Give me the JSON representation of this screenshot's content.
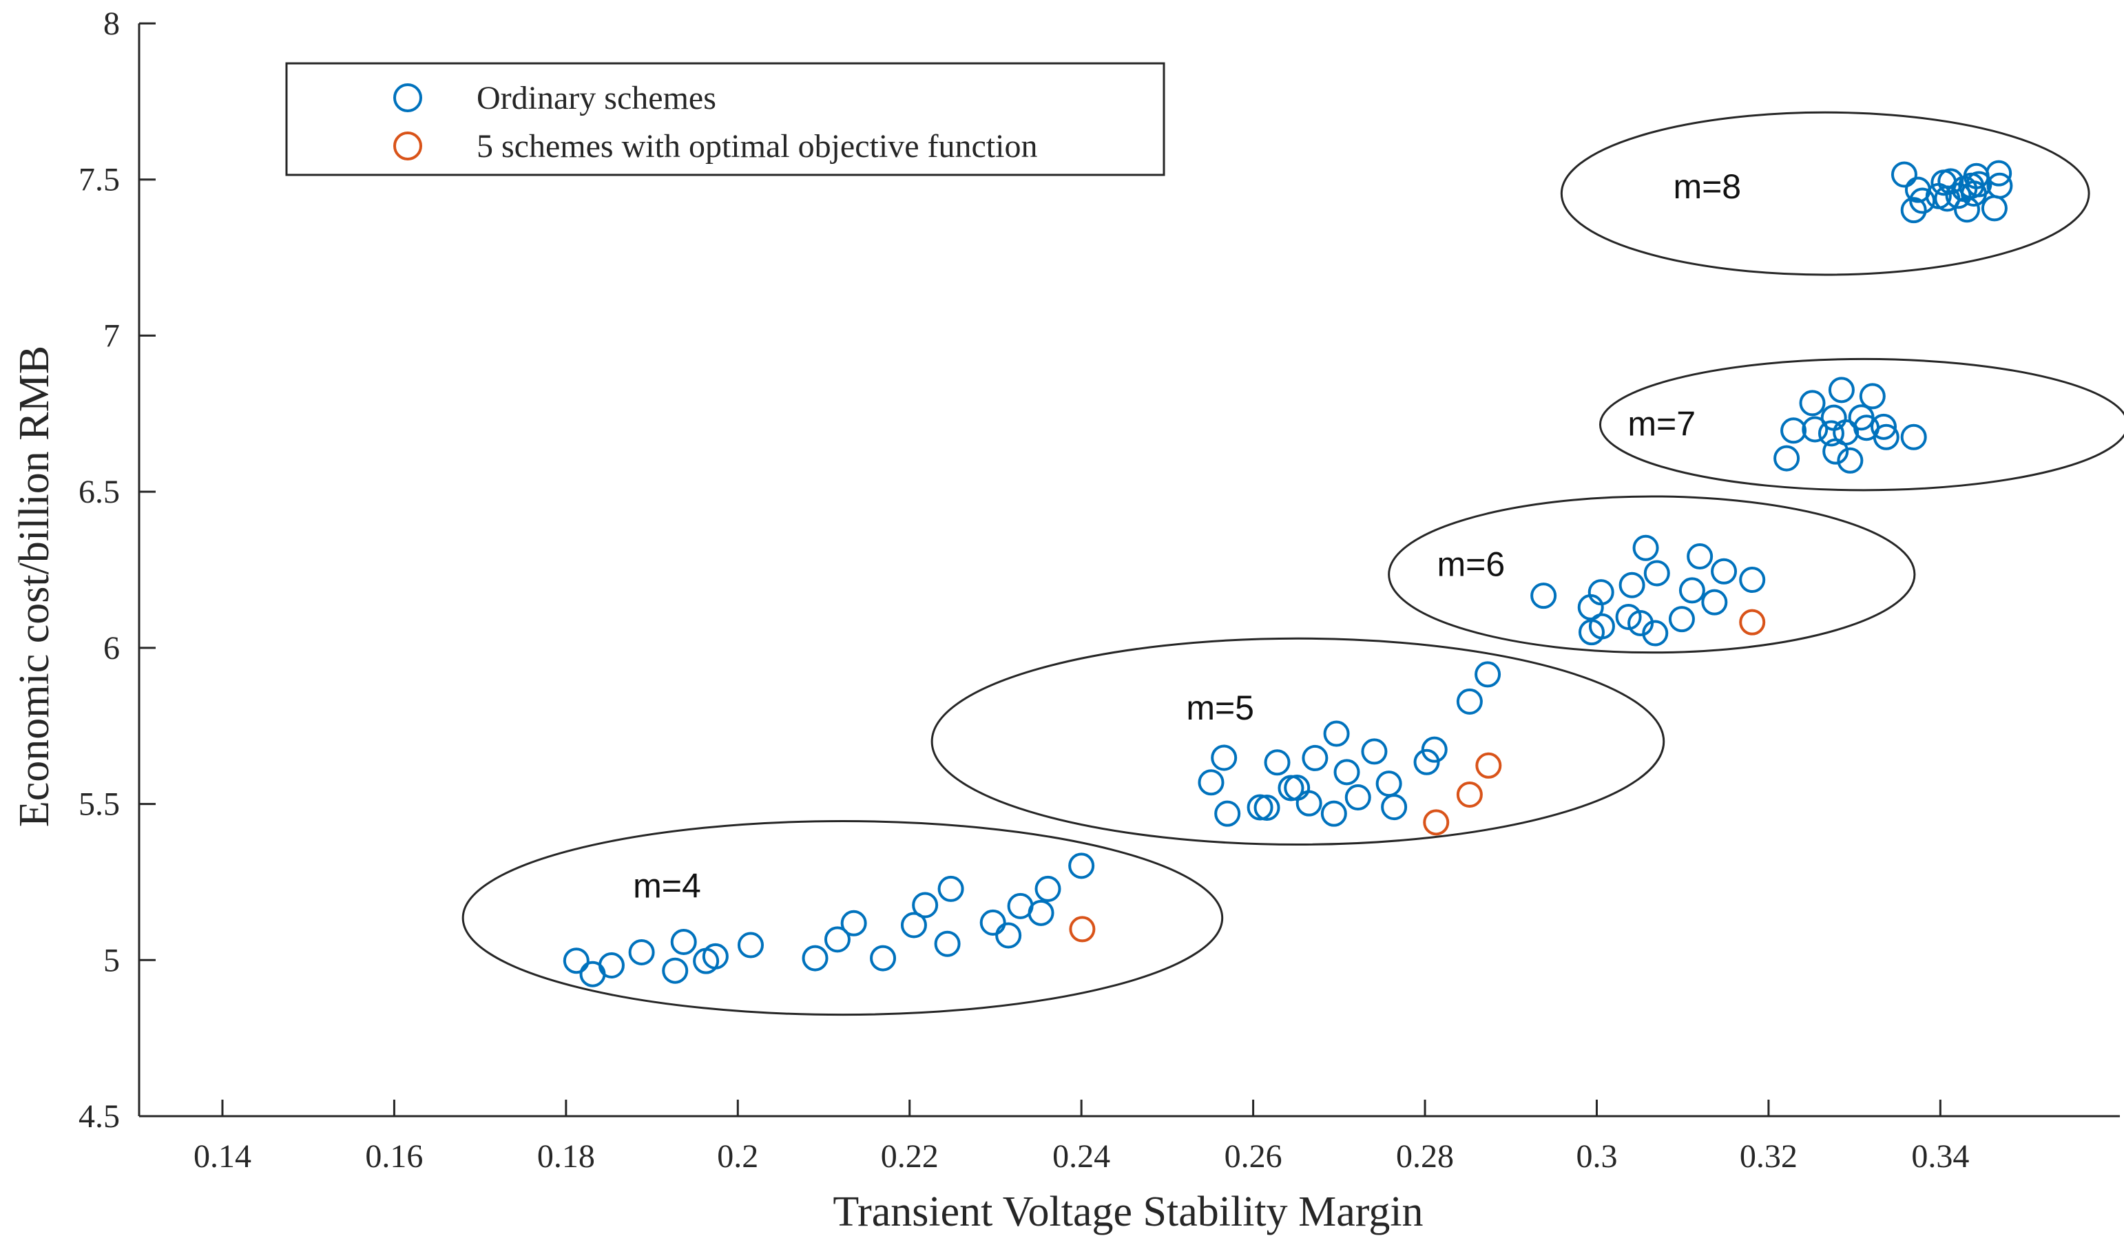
{
  "chart_data": {
    "type": "scatter",
    "title": "",
    "xlabel": "Transient Voltage Stability Margin",
    "ylabel": "Economic cost/billion RMB",
    "xlim": [
      0.1303,
      0.3609
    ],
    "ylim": [
      4.5,
      8.0
    ],
    "x_ticks": [
      "0.14",
      "0.16",
      "0.18",
      "0.2",
      "0.22",
      "0.24",
      "0.26",
      "0.28",
      "0.3",
      "0.32",
      "0.34"
    ],
    "y_ticks": [
      "4.5",
      "5",
      "5.5",
      "6",
      "6.5",
      "7",
      "7.5",
      "8"
    ],
    "grid": false,
    "legend": {
      "placement": "top-left"
    },
    "series": [
      {
        "name": "Ordinary schemes",
        "color": "#0072BD",
        "marker": "open-circle",
        "points": [
          [
            0.1812,
            4.998
          ],
          [
            0.1831,
            4.955
          ],
          [
            0.1853,
            4.983
          ],
          [
            0.1888,
            5.025
          ],
          [
            0.1927,
            4.966
          ],
          [
            0.1937,
            5.058
          ],
          [
            0.1963,
            4.997
          ],
          [
            0.1974,
            5.012
          ],
          [
            0.2015,
            5.048
          ],
          [
            0.209,
            5.006
          ],
          [
            0.2116,
            5.066
          ],
          [
            0.2135,
            5.118
          ],
          [
            0.2169,
            5.006
          ],
          [
            0.2205,
            5.112
          ],
          [
            0.2218,
            5.176
          ],
          [
            0.2244,
            5.052
          ],
          [
            0.2248,
            5.228
          ],
          [
            0.2297,
            5.12
          ],
          [
            0.2315,
            5.079
          ],
          [
            0.2329,
            5.173
          ],
          [
            0.2353,
            5.151
          ],
          [
            0.2361,
            5.228
          ],
          [
            0.24,
            5.302
          ],
          [
            0.2551,
            5.569
          ],
          [
            0.2566,
            5.648
          ],
          [
            0.257,
            5.469
          ],
          [
            0.2608,
            5.489
          ],
          [
            0.2616,
            5.488
          ],
          [
            0.2628,
            5.633
          ],
          [
            0.2644,
            5.551
          ],
          [
            0.2651,
            5.552
          ],
          [
            0.2665,
            5.502
          ],
          [
            0.2672,
            5.647
          ],
          [
            0.2694,
            5.469
          ],
          [
            0.2697,
            5.725
          ],
          [
            0.2709,
            5.602
          ],
          [
            0.2722,
            5.521
          ],
          [
            0.2741,
            5.668
          ],
          [
            0.2758,
            5.565
          ],
          [
            0.2764,
            5.49
          ],
          [
            0.2802,
            5.634
          ],
          [
            0.2811,
            5.674
          ],
          [
            0.2852,
            5.828
          ],
          [
            0.2873,
            5.915
          ],
          [
            0.2938,
            6.167
          ],
          [
            0.2993,
            6.13
          ],
          [
            0.2994,
            6.05
          ],
          [
            0.3005,
            6.178
          ],
          [
            0.3006,
            6.069
          ],
          [
            0.3037,
            6.099
          ],
          [
            0.3041,
            6.201
          ],
          [
            0.3051,
            6.079
          ],
          [
            0.3057,
            6.32
          ],
          [
            0.3068,
            6.047
          ],
          [
            0.307,
            6.239
          ],
          [
            0.3099,
            6.092
          ],
          [
            0.3111,
            6.184
          ],
          [
            0.312,
            6.293
          ],
          [
            0.3137,
            6.146
          ],
          [
            0.3148,
            6.245
          ],
          [
            0.3181,
            6.218
          ],
          [
            0.3221,
            6.607
          ],
          [
            0.3229,
            6.696
          ],
          [
            0.3251,
            6.784
          ],
          [
            0.3254,
            6.7
          ],
          [
            0.3273,
            6.687
          ],
          [
            0.3276,
            6.737
          ],
          [
            0.3278,
            6.629
          ],
          [
            0.3285,
            6.826
          ],
          [
            0.329,
            6.69
          ],
          [
            0.3295,
            6.6
          ],
          [
            0.3308,
            6.738
          ],
          [
            0.3314,
            6.705
          ],
          [
            0.3321,
            6.806
          ],
          [
            0.3334,
            6.708
          ],
          [
            0.3337,
            6.675
          ],
          [
            0.3369,
            6.675
          ],
          [
            0.3358,
            7.516
          ],
          [
            0.3369,
            7.402
          ],
          [
            0.3374,
            7.467
          ],
          [
            0.3379,
            7.432
          ],
          [
            0.3398,
            7.447
          ],
          [
            0.3404,
            7.49
          ],
          [
            0.3408,
            7.439
          ],
          [
            0.3412,
            7.494
          ],
          [
            0.3421,
            7.448
          ],
          [
            0.3428,
            7.47
          ],
          [
            0.3431,
            7.404
          ],
          [
            0.3436,
            7.48
          ],
          [
            0.3439,
            7.455
          ],
          [
            0.3442,
            7.511
          ],
          [
            0.3445,
            7.485
          ],
          [
            0.3463,
            7.408
          ],
          [
            0.3468,
            7.52
          ],
          [
            0.3469,
            7.48
          ]
        ]
      },
      {
        "name": "5 schemes with optimal objective function",
        "color": "#D95319",
        "marker": "open-circle",
        "points": [
          [
            0.2401,
            5.099
          ],
          [
            0.2813,
            5.441
          ],
          [
            0.2852,
            5.53
          ],
          [
            0.2874,
            5.623
          ],
          [
            0.3181,
            6.082
          ]
        ]
      }
    ],
    "group_ellipses": [
      {
        "label": "m=4",
        "center": [
          0.2122,
          5.135
        ],
        "rx": 0.0442,
        "ry": 0.31
      },
      {
        "label": "m=5",
        "center": [
          0.2652,
          5.7
        ],
        "rx": 0.0426,
        "ry": 0.33
      },
      {
        "label": "m=6",
        "center": [
          0.3064,
          6.235
        ],
        "rx": 0.0306,
        "ry": 0.25
      },
      {
        "label": "m=7",
        "center": [
          0.3311,
          6.715
        ],
        "rx": 0.0307,
        "ry": 0.21
      },
      {
        "label": "m=8",
        "center": [
          0.3266,
          7.455
        ],
        "rx": 0.0307,
        "ry": 0.26
      }
    ],
    "group_labels": [
      {
        "text": "m=4",
        "at": [
          0.1878,
          5.2
        ]
      },
      {
        "text": "m=5",
        "at": [
          0.2522,
          5.77
        ]
      },
      {
        "text": "m=6",
        "at": [
          0.2814,
          6.23
        ]
      },
      {
        "text": "m=7",
        "at": [
          0.3036,
          6.68
        ]
      },
      {
        "text": "m=8",
        "at": [
          0.3089,
          7.44
        ]
      }
    ]
  }
}
